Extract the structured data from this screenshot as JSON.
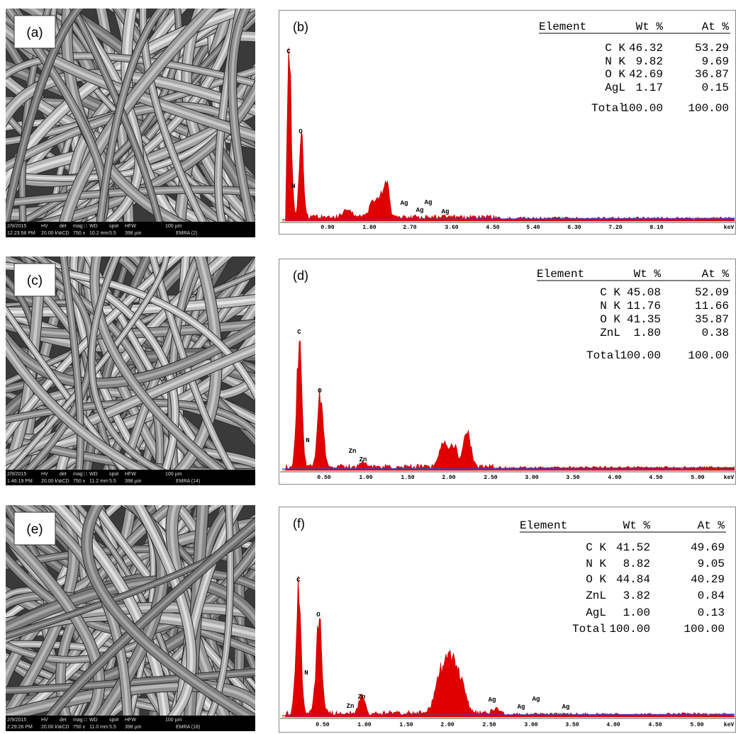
{
  "panels": [
    {
      "sem": {
        "label": "(a)",
        "info_top": [
          "2/9/2015",
          "HV",
          "det",
          "mag □",
          "WD",
          "spot",
          "HFW",
          "100 µm"
        ],
        "info_bottom": [
          "12:23:58 PM",
          "20.00 kV",
          "vCD",
          "750 x",
          "10.2 mm",
          "5.5",
          "398 µm",
          "EMRA (2)"
        ]
      },
      "eds": {
        "label": "(b)",
        "table": {
          "headers": [
            "Element",
            "Wt %",
            "At %"
          ],
          "rows": [
            [
              "C K",
              "46.32",
              "53.29"
            ],
            [
              "N K",
              "9.82",
              "9.69"
            ],
            [
              "O K",
              "42.69",
              "36.87"
            ],
            [
              "AgL",
              "1.17",
              "0.15"
            ],
            [
              "Total",
              "100.00",
              "100.00"
            ]
          ]
        },
        "peak_labels": [
          "C",
          "N",
          "O",
          "Ag",
          "Ag",
          "Ag",
          "Ag"
        ],
        "x_ticks": [
          "0.90",
          "1.80",
          "2.70",
          "3.60",
          "4.50",
          "5.40",
          "6.30",
          "7.20",
          "8.10",
          "keV"
        ]
      }
    },
    {
      "sem": {
        "label": "(c)",
        "info_top": [
          "2/9/2015",
          "HV",
          "det",
          "mag □",
          "WD",
          "spot",
          "HFW",
          "100 µm"
        ],
        "info_bottom": [
          "1:46:19 PM",
          "20.00 kV",
          "vCD",
          "750 x",
          "11.2 mm",
          "5.5",
          "398 µm",
          "EMRA (14)"
        ]
      },
      "eds": {
        "label": "(d)",
        "table": {
          "headers": [
            "Element",
            "Wt %",
            "At %"
          ],
          "rows": [
            [
              "C K",
              "45.08",
              "52.09"
            ],
            [
              "N K",
              "11.76",
              "11.66"
            ],
            [
              "O K",
              "41.35",
              "35.87"
            ],
            [
              "ZnL",
              "1.80",
              "0.38"
            ],
            [
              "Total",
              "100.00",
              "100.00"
            ]
          ]
        },
        "peak_labels": [
          "C",
          "N",
          "O",
          "Zn",
          "Zn"
        ],
        "x_ticks": [
          "0.50",
          "1.00",
          "1.50",
          "2.00",
          "2.50",
          "3.00",
          "3.50",
          "4.00",
          "4.50",
          "5.00",
          "keV"
        ]
      }
    },
    {
      "sem": {
        "label": "(e)",
        "info_top": [
          "2/9/2015",
          "HV",
          "det",
          "mag □",
          "WD",
          "spot",
          "HFW",
          "100 µm"
        ],
        "info_bottom": [
          "2:29:26 PM",
          "20.00 kV",
          "vCD",
          "750 x",
          "11.0 mm",
          "5.5",
          "398 µm",
          "EMRA (18)"
        ]
      },
      "eds": {
        "label": "(f)",
        "table": {
          "headers": [
            "Element",
            "Wt %",
            "At %"
          ],
          "rows": [
            [
              "C K",
              "41.52",
              "49.69"
            ],
            [
              "N K",
              "8.82",
              "9.05"
            ],
            [
              "O K",
              "44.84",
              "40.29"
            ],
            [
              "ZnL",
              "3.82",
              "0.84"
            ],
            [
              "AgL",
              "1.00",
              "0.13"
            ],
            [
              "Total",
              "100.00",
              "100.00"
            ]
          ]
        },
        "peak_labels": [
          "C",
          "N",
          "O",
          "Zn",
          "Zn",
          "Ag",
          "Ag",
          "Ag",
          "Ag"
        ],
        "x_ticks": [
          "0.50",
          "1.00",
          "1.50",
          "2.00",
          "2.50",
          "3.00",
          "3.50",
          "4.00",
          "4.50",
          "5.00",
          "keV"
        ]
      }
    }
  ]
}
